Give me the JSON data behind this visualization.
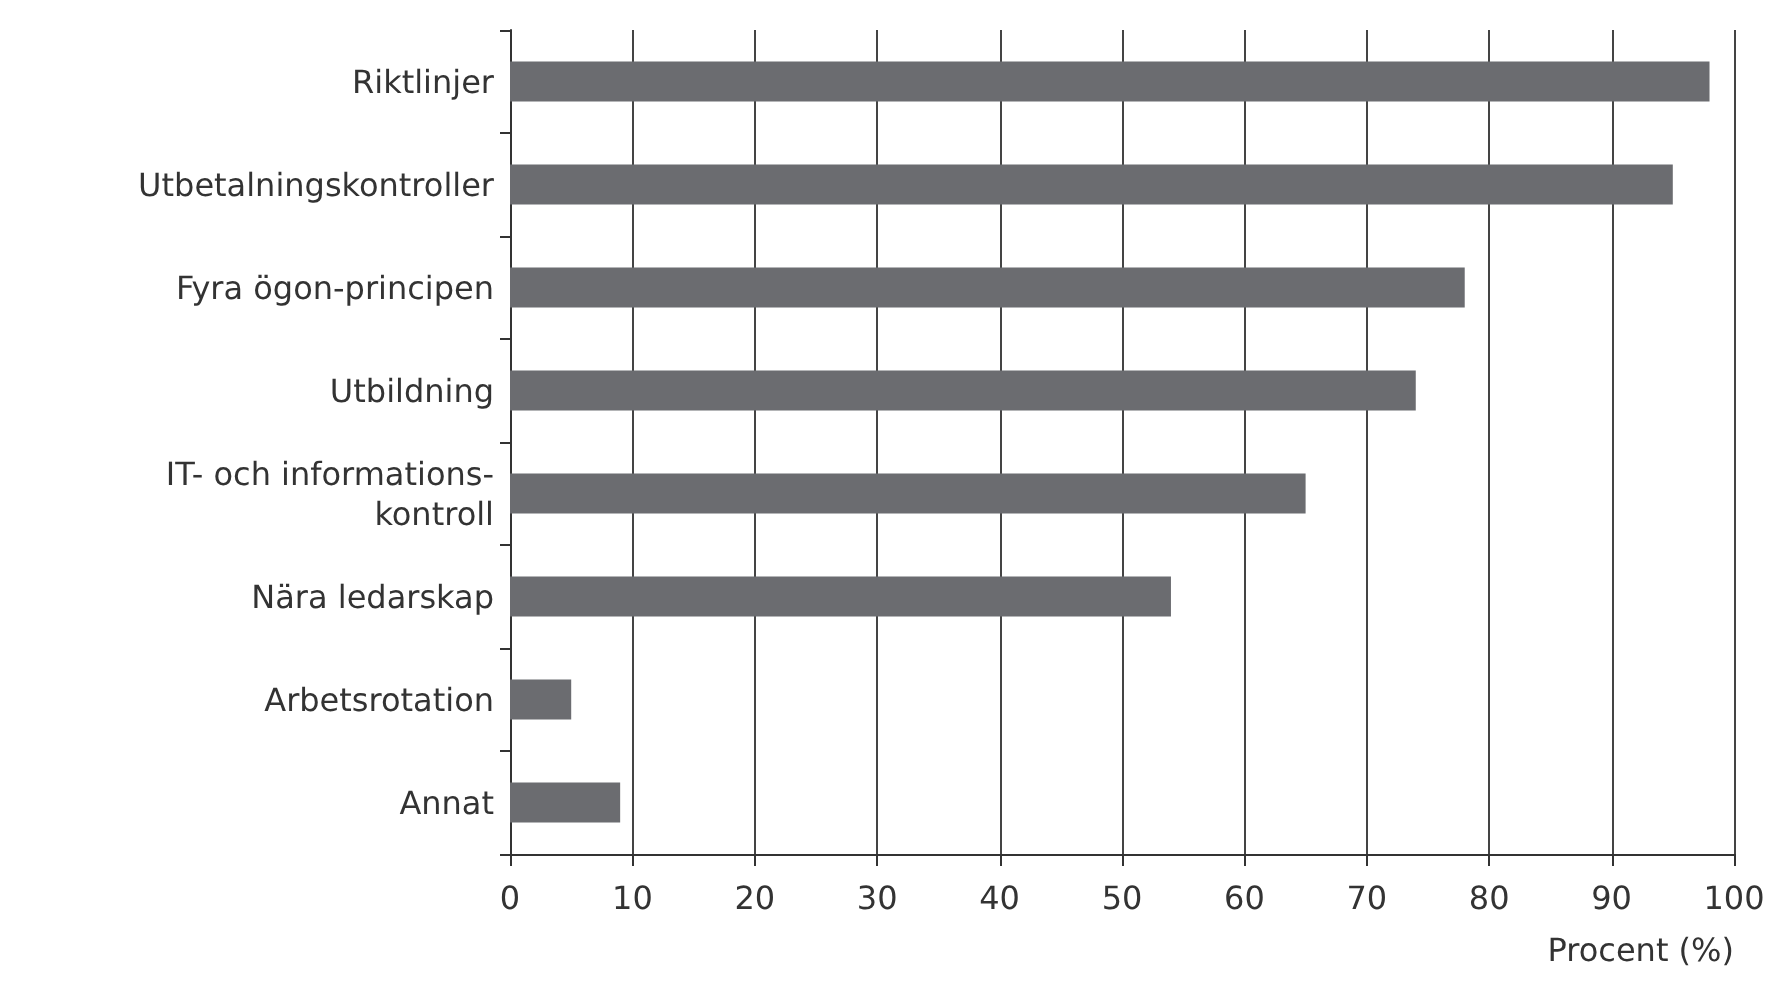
{
  "chart_data": {
    "type": "bar",
    "orientation": "horizontal",
    "xlabel": "Procent (%)",
    "categories": [
      "Riktlinjer",
      "Utbetalningskontroller",
      "Fyra ögon-principen",
      "Utbildning",
      "IT- och informations-\nkontroll",
      "Nära ledarskap",
      "Arbetsrotation",
      "Annat"
    ],
    "values": [
      98,
      95,
      78,
      74,
      65,
      54,
      5,
      9
    ],
    "color": "#6b6c70",
    "xlim": [
      0,
      100
    ],
    "xticks": [
      0,
      10,
      20,
      30,
      40,
      50,
      60,
      70,
      80,
      90,
      100
    ],
    "grid": "x"
  }
}
